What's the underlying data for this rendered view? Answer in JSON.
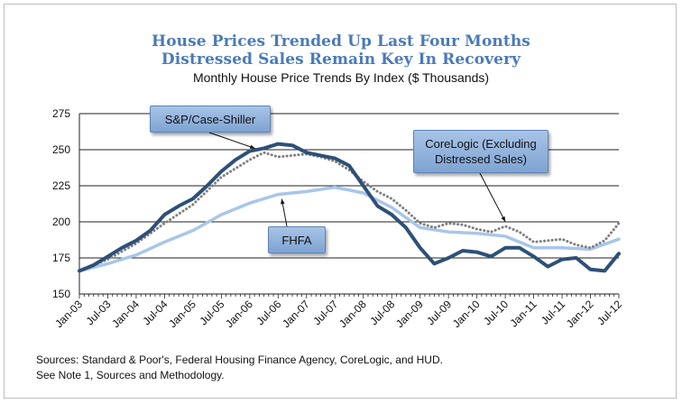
{
  "title": {
    "line1": "House Prices Trended Up Last Four Months",
    "line2": "Distressed Sales Remain Key In Recovery",
    "subtitle": "Monthly House Price Trends By Index ($ Thousands)"
  },
  "callouts": {
    "sp": "S&P/Case-Shiller",
    "corelogic_line1": "CoreLogic (Excluding",
    "corelogic_line2": "Distressed Sales)",
    "fhfa": "FHFA"
  },
  "sources": {
    "line1": "Sources:  Standard & Poor's, Federal Housing Finance Agency, CoreLogic, and HUD.",
    "line2": "See Note 1, Sources and Methodology."
  },
  "colors": {
    "sp": "#2e5077",
    "fhfa": "#a8c6e8",
    "corelogic": "#7f7f7f",
    "title": "#4a7ab8"
  },
  "chart_data": {
    "type": "line",
    "title": "Monthly House Price Trends By Index ($ Thousands)",
    "ylim": [
      150,
      275
    ],
    "yticks": [
      150,
      175,
      200,
      225,
      250,
      275
    ],
    "x_range": [
      "Jan-03",
      "Jul-12"
    ],
    "xticks": [
      "Jan-03",
      "Jul-03",
      "Jan-04",
      "Jul-04",
      "Jan-05",
      "Jul-05",
      "Jan-06",
      "Jul-06",
      "Jan-07",
      "Jul-07",
      "Jan-08",
      "Jul-08",
      "Jan-09",
      "Jul-09",
      "Jan-10",
      "Jul-10",
      "Jan-11",
      "Jul-11",
      "Jan-12",
      "Jul-12"
    ],
    "grid": "horizontal",
    "series": [
      {
        "name": "S&P/Case-Shiller",
        "style": "solid-thick",
        "points": [
          [
            "Jan-03",
            166
          ],
          [
            "Apr-03",
            170
          ],
          [
            "Jul-03",
            176
          ],
          [
            "Oct-03",
            182
          ],
          [
            "Jan-04",
            187
          ],
          [
            "Apr-04",
            194
          ],
          [
            "Jul-04",
            205
          ],
          [
            "Oct-04",
            211
          ],
          [
            "Jan-05",
            216
          ],
          [
            "Apr-05",
            225
          ],
          [
            "Jul-05",
            235
          ],
          [
            "Oct-05",
            243
          ],
          [
            "Jan-06",
            249
          ],
          [
            "Apr-06",
            251
          ],
          [
            "Jul-06",
            254
          ],
          [
            "Oct-06",
            253
          ],
          [
            "Jan-07",
            248
          ],
          [
            "Apr-07",
            246
          ],
          [
            "Jul-07",
            244
          ],
          [
            "Oct-07",
            239
          ],
          [
            "Jan-08",
            225
          ],
          [
            "Apr-08",
            211
          ],
          [
            "Jul-08",
            205
          ],
          [
            "Oct-08",
            196
          ],
          [
            "Jan-09",
            182
          ],
          [
            "Apr-09",
            171
          ],
          [
            "Jul-09",
            175
          ],
          [
            "Oct-09",
            180
          ],
          [
            "Jan-10",
            179
          ],
          [
            "Apr-10",
            176
          ],
          [
            "Jul-10",
            182
          ],
          [
            "Oct-10",
            182
          ],
          [
            "Jan-11",
            176
          ],
          [
            "Apr-11",
            169
          ],
          [
            "Jul-11",
            174
          ],
          [
            "Oct-11",
            175
          ],
          [
            "Jan-12",
            167
          ],
          [
            "Apr-12",
            166
          ],
          [
            "Jul-12",
            178
          ]
        ]
      },
      {
        "name": "CoreLogic (Excluding Distressed Sales)",
        "style": "dotted",
        "points": [
          [
            "Jan-03",
            166
          ],
          [
            "Jul-03",
            174
          ],
          [
            "Jan-04",
            185
          ],
          [
            "Jul-04",
            199
          ],
          [
            "Jan-05",
            212
          ],
          [
            "Jul-05",
            231
          ],
          [
            "Jan-06",
            243
          ],
          [
            "Apr-06",
            248
          ],
          [
            "Jul-06",
            245
          ],
          [
            "Oct-06",
            246
          ],
          [
            "Jan-07",
            247
          ],
          [
            "Apr-07",
            245
          ],
          [
            "Jul-07",
            242
          ],
          [
            "Oct-07",
            236
          ],
          [
            "Jan-08",
            228
          ],
          [
            "Apr-08",
            221
          ],
          [
            "Jul-08",
            216
          ],
          [
            "Oct-08",
            208
          ],
          [
            "Jan-09",
            199
          ],
          [
            "Apr-09",
            196
          ],
          [
            "Jul-09",
            199
          ],
          [
            "Oct-09",
            198
          ],
          [
            "Jan-10",
            195
          ],
          [
            "Apr-10",
            193
          ],
          [
            "Jul-10",
            197
          ],
          [
            "Oct-10",
            193
          ],
          [
            "Jan-11",
            186
          ],
          [
            "Apr-11",
            187
          ],
          [
            "Jul-11",
            188
          ],
          [
            "Oct-11",
            184
          ],
          [
            "Jan-12",
            182
          ],
          [
            "Apr-12",
            187
          ],
          [
            "Jul-12",
            199
          ]
        ]
      },
      {
        "name": "FHFA",
        "style": "solid-light",
        "points": [
          [
            "Jan-03",
            166
          ],
          [
            "Jul-03",
            171
          ],
          [
            "Jan-04",
            177
          ],
          [
            "Jul-04",
            186
          ],
          [
            "Jan-05",
            194
          ],
          [
            "Jul-05",
            205
          ],
          [
            "Jan-06",
            213
          ],
          [
            "Jul-06",
            219
          ],
          [
            "Jan-07",
            221
          ],
          [
            "Jul-07",
            224
          ],
          [
            "Jan-08",
            220
          ],
          [
            "Jul-08",
            210
          ],
          [
            "Jan-09",
            196
          ],
          [
            "Jul-09",
            193
          ],
          [
            "Jan-10",
            192
          ],
          [
            "Jul-10",
            190
          ],
          [
            "Jan-11",
            182
          ],
          [
            "Jul-11",
            182
          ],
          [
            "Jan-12",
            181
          ],
          [
            "Jul-12",
            188
          ]
        ]
      }
    ]
  }
}
